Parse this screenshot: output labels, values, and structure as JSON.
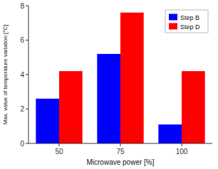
{
  "chart_data": {
    "type": "bar",
    "xlabel": "Microwave power [%]",
    "ylabel": "Max. value of temperature variation [°C]",
    "categories": [
      "50",
      "75",
      "100"
    ],
    "series": [
      {
        "name": "Step B",
        "color": "#0000ff",
        "values": [
          2.6,
          5.2,
          1.1
        ]
      },
      {
        "name": "Step D",
        "color": "#ff0000",
        "values": [
          4.2,
          7.6,
          4.2
        ]
      }
    ],
    "ylim": [
      0,
      8
    ],
    "yticks": [
      0,
      2,
      4,
      6,
      8
    ],
    "legend": "upper right"
  }
}
